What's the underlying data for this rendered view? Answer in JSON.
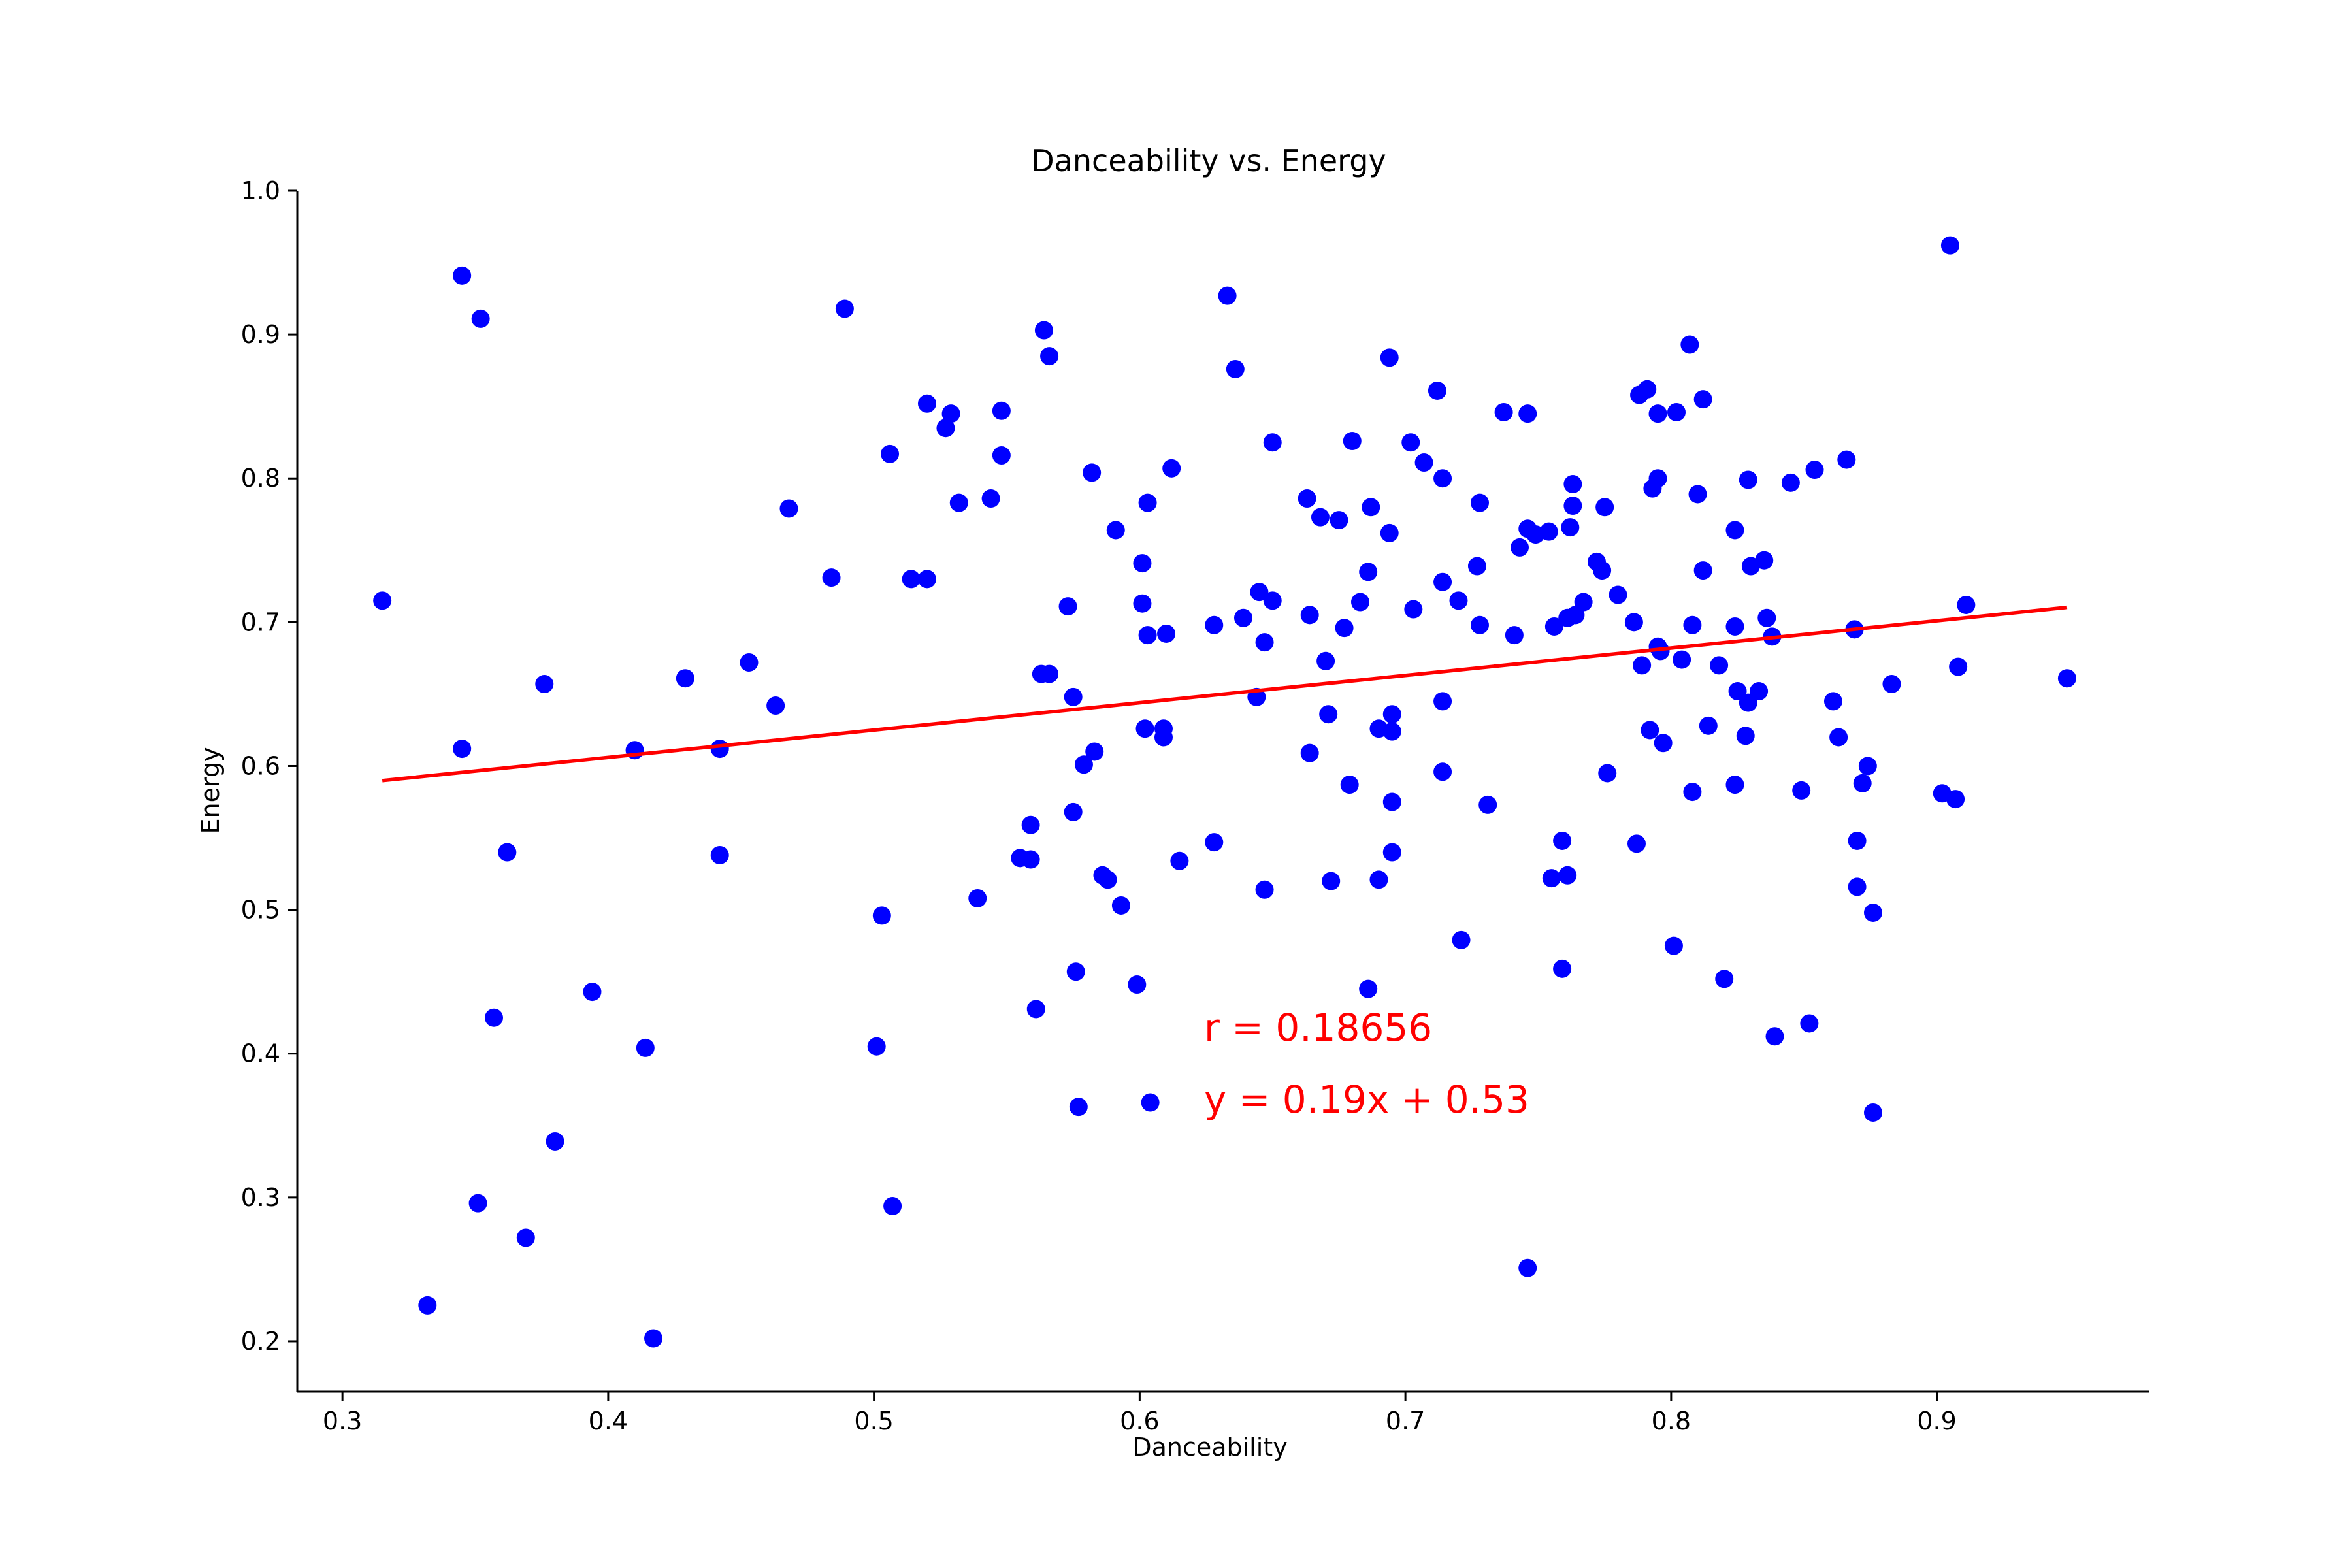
{
  "chart_data": {
    "type": "scatter",
    "title": "Danceability vs. Energy",
    "xlabel": "Danceability",
    "ylabel": "Energy",
    "xlim": [
      0.283,
      0.98
    ],
    "ylim": [
      0.165,
      1.0
    ],
    "xticks": [
      0.3,
      0.4,
      0.5,
      0.6,
      0.7,
      0.8,
      0.9
    ],
    "xtick_labels": [
      "0.3",
      "0.4",
      "0.5",
      "0.6",
      "0.7",
      "0.8",
      "0.9"
    ],
    "yticks": [
      0.2,
      0.3,
      0.4,
      0.5,
      0.6,
      0.7,
      0.8,
      0.9,
      1.0
    ],
    "ytick_labels": [
      "0.2",
      "0.3",
      "0.4",
      "0.5",
      "0.6",
      "0.7",
      "0.8",
      "0.9",
      "1.0"
    ],
    "grid": false,
    "colors": {
      "points": "#0000ff",
      "fit_line": "#ff0000",
      "annotation": "#ff0000",
      "axes": "#000000"
    },
    "points": [
      [
        0.315,
        0.715
      ],
      [
        0.332,
        0.225
      ],
      [
        0.345,
        0.941
      ],
      [
        0.345,
        0.612
      ],
      [
        0.351,
        0.296
      ],
      [
        0.352,
        0.911
      ],
      [
        0.357,
        0.425
      ],
      [
        0.362,
        0.54
      ],
      [
        0.369,
        0.272
      ],
      [
        0.376,
        0.657
      ],
      [
        0.38,
        0.339
      ],
      [
        0.394,
        0.443
      ],
      [
        0.41,
        0.611
      ],
      [
        0.414,
        0.404
      ],
      [
        0.417,
        0.202
      ],
      [
        0.429,
        0.661
      ],
      [
        0.442,
        0.612
      ],
      [
        0.442,
        0.538
      ],
      [
        0.453,
        0.672
      ],
      [
        0.463,
        0.642
      ],
      [
        0.468,
        0.779
      ],
      [
        0.484,
        0.731
      ],
      [
        0.489,
        0.918
      ],
      [
        0.501,
        0.405
      ],
      [
        0.503,
        0.496
      ],
      [
        0.506,
        0.817
      ],
      [
        0.507,
        0.294
      ],
      [
        0.514,
        0.73
      ],
      [
        0.52,
        0.852
      ],
      [
        0.52,
        0.73
      ],
      [
        0.527,
        0.835
      ],
      [
        0.529,
        0.845
      ],
      [
        0.532,
        0.783
      ],
      [
        0.539,
        0.508
      ],
      [
        0.544,
        0.786
      ],
      [
        0.548,
        0.847
      ],
      [
        0.548,
        0.816
      ],
      [
        0.555,
        0.536
      ],
      [
        0.559,
        0.559
      ],
      [
        0.559,
        0.535
      ],
      [
        0.561,
        0.431
      ],
      [
        0.563,
        0.664
      ],
      [
        0.564,
        0.903
      ],
      [
        0.566,
        0.885
      ],
      [
        0.566,
        0.664
      ],
      [
        0.573,
        0.711
      ],
      [
        0.575,
        0.648
      ],
      [
        0.575,
        0.568
      ],
      [
        0.576,
        0.457
      ],
      [
        0.577,
        0.363
      ],
      [
        0.579,
        0.601
      ],
      [
        0.582,
        0.804
      ],
      [
        0.583,
        0.61
      ],
      [
        0.586,
        0.524
      ],
      [
        0.588,
        0.521
      ],
      [
        0.591,
        0.764
      ],
      [
        0.593,
        0.503
      ],
      [
        0.599,
        0.448
      ],
      [
        0.601,
        0.741
      ],
      [
        0.601,
        0.713
      ],
      [
        0.602,
        0.626
      ],
      [
        0.603,
        0.783
      ],
      [
        0.603,
        0.691
      ],
      [
        0.604,
        0.366
      ],
      [
        0.609,
        0.626
      ],
      [
        0.609,
        0.62
      ],
      [
        0.61,
        0.692
      ],
      [
        0.612,
        0.807
      ],
      [
        0.615,
        0.534
      ],
      [
        0.628,
        0.698
      ],
      [
        0.628,
        0.547
      ],
      [
        0.633,
        0.927
      ],
      [
        0.636,
        0.876
      ],
      [
        0.639,
        0.703
      ],
      [
        0.644,
        0.648
      ],
      [
        0.645,
        0.721
      ],
      [
        0.647,
        0.686
      ],
      [
        0.647,
        0.514
      ],
      [
        0.65,
        0.825
      ],
      [
        0.65,
        0.715
      ],
      [
        0.663,
        0.786
      ],
      [
        0.664,
        0.705
      ],
      [
        0.664,
        0.609
      ],
      [
        0.668,
        0.773
      ],
      [
        0.67,
        0.673
      ],
      [
        0.671,
        0.636
      ],
      [
        0.672,
        0.52
      ],
      [
        0.675,
        0.771
      ],
      [
        0.677,
        0.696
      ],
      [
        0.679,
        0.587
      ],
      [
        0.68,
        0.826
      ],
      [
        0.683,
        0.714
      ],
      [
        0.686,
        0.445
      ],
      [
        0.686,
        0.735
      ],
      [
        0.687,
        0.78
      ],
      [
        0.69,
        0.626
      ],
      [
        0.69,
        0.521
      ],
      [
        0.694,
        0.884
      ],
      [
        0.694,
        0.762
      ],
      [
        0.695,
        0.636
      ],
      [
        0.695,
        0.624
      ],
      [
        0.695,
        0.575
      ],
      [
        0.695,
        0.54
      ],
      [
        0.702,
        0.825
      ],
      [
        0.703,
        0.709
      ],
      [
        0.707,
        0.811
      ],
      [
        0.712,
        0.861
      ],
      [
        0.714,
        0.8
      ],
      [
        0.714,
        0.728
      ],
      [
        0.714,
        0.645
      ],
      [
        0.714,
        0.596
      ],
      [
        0.72,
        0.715
      ],
      [
        0.721,
        0.479
      ],
      [
        0.727,
        0.739
      ],
      [
        0.728,
        0.783
      ],
      [
        0.728,
        0.698
      ],
      [
        0.731,
        0.573
      ],
      [
        0.737,
        0.846
      ],
      [
        0.741,
        0.691
      ],
      [
        0.743,
        0.752
      ],
      [
        0.746,
        0.845
      ],
      [
        0.746,
        0.765
      ],
      [
        0.746,
        0.251
      ],
      [
        0.749,
        0.761
      ],
      [
        0.754,
        0.763
      ],
      [
        0.755,
        0.522
      ],
      [
        0.756,
        0.697
      ],
      [
        0.759,
        0.548
      ],
      [
        0.759,
        0.459
      ],
      [
        0.761,
        0.703
      ],
      [
        0.761,
        0.524
      ],
      [
        0.762,
        0.766
      ],
      [
        0.763,
        0.796
      ],
      [
        0.763,
        0.781
      ],
      [
        0.764,
        0.705
      ],
      [
        0.767,
        0.714
      ],
      [
        0.772,
        0.742
      ],
      [
        0.774,
        0.736
      ],
      [
        0.775,
        0.78
      ],
      [
        0.776,
        0.595
      ],
      [
        0.78,
        0.719
      ],
      [
        0.786,
        0.7
      ],
      [
        0.787,
        0.546
      ],
      [
        0.788,
        0.858
      ],
      [
        0.789,
        0.67
      ],
      [
        0.791,
        0.862
      ],
      [
        0.792,
        0.625
      ],
      [
        0.793,
        0.793
      ],
      [
        0.795,
        0.845
      ],
      [
        0.795,
        0.8
      ],
      [
        0.795,
        0.683
      ],
      [
        0.796,
        0.68
      ],
      [
        0.797,
        0.616
      ],
      [
        0.801,
        0.475
      ],
      [
        0.802,
        0.846
      ],
      [
        0.804,
        0.674
      ],
      [
        0.807,
        0.893
      ],
      [
        0.808,
        0.698
      ],
      [
        0.808,
        0.582
      ],
      [
        0.81,
        0.789
      ],
      [
        0.812,
        0.855
      ],
      [
        0.812,
        0.736
      ],
      [
        0.814,
        0.628
      ],
      [
        0.818,
        0.67
      ],
      [
        0.82,
        0.452
      ],
      [
        0.824,
        0.764
      ],
      [
        0.824,
        0.697
      ],
      [
        0.824,
        0.587
      ],
      [
        0.825,
        0.652
      ],
      [
        0.828,
        0.621
      ],
      [
        0.829,
        0.799
      ],
      [
        0.829,
        0.644
      ],
      [
        0.83,
        0.739
      ],
      [
        0.833,
        0.652
      ],
      [
        0.835,
        0.743
      ],
      [
        0.836,
        0.703
      ],
      [
        0.838,
        0.69
      ],
      [
        0.839,
        0.412
      ],
      [
        0.845,
        0.797
      ],
      [
        0.849,
        0.583
      ],
      [
        0.852,
        0.421
      ],
      [
        0.854,
        0.806
      ],
      [
        0.861,
        0.645
      ],
      [
        0.863,
        0.62
      ],
      [
        0.866,
        0.813
      ],
      [
        0.869,
        0.695
      ],
      [
        0.87,
        0.548
      ],
      [
        0.87,
        0.516
      ],
      [
        0.872,
        0.588
      ],
      [
        0.874,
        0.6
      ],
      [
        0.876,
        0.498
      ],
      [
        0.876,
        0.359
      ],
      [
        0.883,
        0.657
      ],
      [
        0.902,
        0.581
      ],
      [
        0.905,
        0.962
      ],
      [
        0.907,
        0.577
      ],
      [
        0.908,
        0.669
      ],
      [
        0.911,
        0.712
      ],
      [
        0.949,
        0.661
      ]
    ],
    "fit_line": {
      "slope": 0.19,
      "intercept": 0.53,
      "x_range": [
        0.315,
        0.949
      ]
    },
    "annotations": [
      "r = 0.18656",
      "y = 0.19x + 0.53"
    ]
  }
}
